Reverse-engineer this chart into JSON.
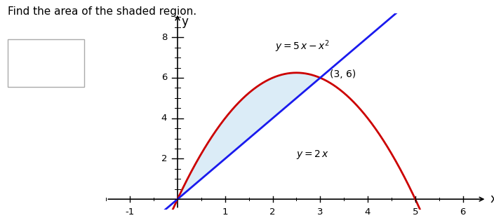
{
  "title": "Find the area of the shaded region.",
  "xlabel": "x",
  "ylabel": "y",
  "xlim": [
    -1.5,
    6.5
  ],
  "ylim": [
    -0.5,
    9.2
  ],
  "xticks": [
    -1,
    1,
    2,
    3,
    4,
    5,
    6
  ],
  "yticks": [
    2,
    4,
    6,
    8
  ],
  "parabola_color": "#cc0000",
  "line_color": "#1a1aee",
  "shade_color": "#cce5f5",
  "shade_alpha": 0.7,
  "background_color": "#ffffff",
  "annotation": "(3, 6)",
  "tick_minor_count": 4
}
